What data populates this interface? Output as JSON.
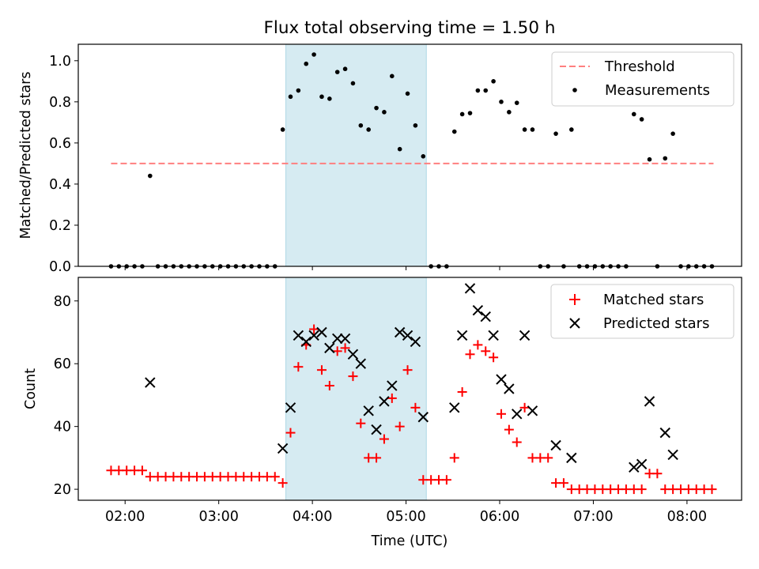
{
  "title": "Flux total observing time = 1.50 h",
  "colors": {
    "shade": "#add8e6",
    "threshold": "#ff7f7f",
    "measurement": "#000000",
    "matched": "#ff0000",
    "predicted": "#000000"
  },
  "chart_data": [
    {
      "type": "scatter",
      "ylabel": "Matched/Predicted stars",
      "xlim": [
        "01:30",
        "08:35"
      ],
      "ylim": [
        0,
        1.08
      ],
      "yticks": [
        "0.0",
        "0.2",
        "0.4",
        "0.6",
        "0.8",
        "1.0"
      ],
      "shaded_interval": [
        "03:43",
        "05:13"
      ],
      "legend_position": "upper right",
      "series": [
        {
          "name": "Threshold",
          "style": "dashed-line",
          "x": [
            "01:51",
            "08:17"
          ],
          "y": [
            0.5,
            0.5
          ]
        },
        {
          "name": "Measurements",
          "style": "dot",
          "points": [
            [
              "01:51",
              0
            ],
            [
              "01:56",
              0
            ],
            [
              "02:01",
              0
            ],
            [
              "02:06",
              0
            ],
            [
              "02:11",
              0
            ],
            [
              "02:16",
              0.44
            ],
            [
              "02:21",
              0
            ],
            [
              "02:26",
              0
            ],
            [
              "02:31",
              0
            ],
            [
              "02:36",
              0
            ],
            [
              "02:41",
              0
            ],
            [
              "02:46",
              0
            ],
            [
              "02:51",
              0
            ],
            [
              "02:56",
              0
            ],
            [
              "03:01",
              0
            ],
            [
              "03:06",
              0
            ],
            [
              "03:11",
              0
            ],
            [
              "03:16",
              0
            ],
            [
              "03:21",
              0
            ],
            [
              "03:26",
              0
            ],
            [
              "03:31",
              0
            ],
            [
              "03:36",
              0
            ],
            [
              "03:41",
              0.665
            ],
            [
              "03:46",
              0.825
            ],
            [
              "03:51",
              0.855
            ],
            [
              "03:56",
              0.985
            ],
            [
              "04:01",
              1.03
            ],
            [
              "04:06",
              0.825
            ],
            [
              "04:11",
              0.815
            ],
            [
              "04:16",
              0.945
            ],
            [
              "04:21",
              0.96
            ],
            [
              "04:26",
              0.89
            ],
            [
              "04:31",
              0.685
            ],
            [
              "04:36",
              0.665
            ],
            [
              "04:41",
              0.77
            ],
            [
              "04:46",
              0.75
            ],
            [
              "04:51",
              0.925
            ],
            [
              "04:56",
              0.57
            ],
            [
              "05:01",
              0.84
            ],
            [
              "05:06",
              0.685
            ],
            [
              "05:11",
              0.535
            ],
            [
              "05:16",
              0
            ],
            [
              "05:21",
              0
            ],
            [
              "05:26",
              0
            ],
            [
              "05:31",
              0.655
            ],
            [
              "05:36",
              0.74
            ],
            [
              "05:41",
              0.745
            ],
            [
              "05:46",
              0.855
            ],
            [
              "05:51",
              0.855
            ],
            [
              "05:56",
              0.9
            ],
            [
              "06:01",
              0.8
            ],
            [
              "06:06",
              0.75
            ],
            [
              "06:11",
              0.795
            ],
            [
              "06:16",
              0.665
            ],
            [
              "06:21",
              0.665
            ],
            [
              "06:26",
              0
            ],
            [
              "06:31",
              0
            ],
            [
              "06:36",
              0.645
            ],
            [
              "06:41",
              0
            ],
            [
              "06:46",
              0.665
            ],
            [
              "06:51",
              0
            ],
            [
              "06:56",
              0
            ],
            [
              "07:01",
              0
            ],
            [
              "07:06",
              0
            ],
            [
              "07:11",
              0
            ],
            [
              "07:16",
              0
            ],
            [
              "07:21",
              0
            ],
            [
              "07:26",
              0.74
            ],
            [
              "07:31",
              0.715
            ],
            [
              "07:36",
              0.52
            ],
            [
              "07:41",
              0
            ],
            [
              "07:46",
              0.525
            ],
            [
              "07:51",
              0.645
            ],
            [
              "07:56",
              0
            ],
            [
              "08:01",
              0
            ],
            [
              "08:06",
              0
            ],
            [
              "08:11",
              0
            ],
            [
              "08:16",
              0
            ]
          ]
        }
      ]
    },
    {
      "type": "scatter",
      "ylabel": "Count",
      "xlabel": "Time (UTC)",
      "xlim": [
        "01:30",
        "08:35"
      ],
      "ylim": [
        16.5,
        87.5
      ],
      "yticks": [
        "20",
        "40",
        "60",
        "80"
      ],
      "xticks": [
        "02:00",
        "03:00",
        "04:00",
        "05:00",
        "06:00",
        "07:00",
        "08:00"
      ],
      "shaded_interval": [
        "03:43",
        "05:13"
      ],
      "legend_position": "upper right",
      "series": [
        {
          "name": "Matched stars",
          "style": "plus",
          "points": [
            [
              "01:51",
              26
            ],
            [
              "01:56",
              26
            ],
            [
              "02:01",
              26
            ],
            [
              "02:06",
              26
            ],
            [
              "02:11",
              26
            ],
            [
              "02:16",
              24
            ],
            [
              "02:21",
              24
            ],
            [
              "02:26",
              24
            ],
            [
              "02:31",
              24
            ],
            [
              "02:36",
              24
            ],
            [
              "02:41",
              24
            ],
            [
              "02:46",
              24
            ],
            [
              "02:51",
              24
            ],
            [
              "02:56",
              24
            ],
            [
              "03:01",
              24
            ],
            [
              "03:06",
              24
            ],
            [
              "03:11",
              24
            ],
            [
              "03:16",
              24
            ],
            [
              "03:21",
              24
            ],
            [
              "03:26",
              24
            ],
            [
              "03:31",
              24
            ],
            [
              "03:36",
              24
            ],
            [
              "03:41",
              22
            ],
            [
              "03:46",
              38
            ],
            [
              "03:51",
              59
            ],
            [
              "03:56",
              66
            ],
            [
              "04:01",
              71
            ],
            [
              "04:06",
              58
            ],
            [
              "04:11",
              53
            ],
            [
              "04:16",
              64
            ],
            [
              "04:21",
              65
            ],
            [
              "04:26",
              56
            ],
            [
              "04:31",
              41
            ],
            [
              "04:36",
              30
            ],
            [
              "04:41",
              30
            ],
            [
              "04:46",
              36
            ],
            [
              "04:51",
              49
            ],
            [
              "04:56",
              40
            ],
            [
              "05:01",
              58
            ],
            [
              "05:06",
              46
            ],
            [
              "05:11",
              23
            ],
            [
              "05:16",
              23
            ],
            [
              "05:21",
              23
            ],
            [
              "05:26",
              23
            ],
            [
              "05:31",
              30
            ],
            [
              "05:36",
              51
            ],
            [
              "05:41",
              63
            ],
            [
              "05:46",
              66
            ],
            [
              "05:51",
              64
            ],
            [
              "05:56",
              62
            ],
            [
              "06:01",
              44
            ],
            [
              "06:06",
              39
            ],
            [
              "06:11",
              35
            ],
            [
              "06:16",
              46
            ],
            [
              "06:21",
              30
            ],
            [
              "06:26",
              30
            ],
            [
              "06:31",
              30
            ],
            [
              "06:36",
              22
            ],
            [
              "06:41",
              22
            ],
            [
              "06:46",
              20
            ],
            [
              "06:51",
              20
            ],
            [
              "06:56",
              20
            ],
            [
              "07:01",
              20
            ],
            [
              "07:06",
              20
            ],
            [
              "07:11",
              20
            ],
            [
              "07:16",
              20
            ],
            [
              "07:21",
              20
            ],
            [
              "07:26",
              20
            ],
            [
              "07:31",
              20
            ],
            [
              "07:36",
              25
            ],
            [
              "07:41",
              25
            ],
            [
              "07:46",
              20
            ],
            [
              "07:51",
              20
            ],
            [
              "07:56",
              20
            ],
            [
              "08:01",
              20
            ],
            [
              "08:06",
              20
            ],
            [
              "08:11",
              20
            ],
            [
              "08:16",
              20
            ]
          ]
        },
        {
          "name": "Predicted stars",
          "style": "cross",
          "points": [
            [
              "02:16",
              54
            ],
            [
              "03:41",
              33
            ],
            [
              "03:46",
              46
            ],
            [
              "03:51",
              69
            ],
            [
              "03:56",
              67
            ],
            [
              "04:01",
              69
            ],
            [
              "04:06",
              70
            ],
            [
              "04:11",
              65
            ],
            [
              "04:16",
              68
            ],
            [
              "04:21",
              68
            ],
            [
              "04:26",
              63
            ],
            [
              "04:31",
              60
            ],
            [
              "04:36",
              45
            ],
            [
              "04:41",
              39
            ],
            [
              "04:46",
              48
            ],
            [
              "04:51",
              53
            ],
            [
              "04:56",
              70
            ],
            [
              "05:01",
              69
            ],
            [
              "05:06",
              67
            ],
            [
              "05:11",
              43
            ],
            [
              "05:31",
              46
            ],
            [
              "05:36",
              69
            ],
            [
              "05:41",
              84
            ],
            [
              "05:46",
              77
            ],
            [
              "05:51",
              75
            ],
            [
              "05:56",
              69
            ],
            [
              "06:01",
              55
            ],
            [
              "06:06",
              52
            ],
            [
              "06:11",
              44
            ],
            [
              "06:16",
              69
            ],
            [
              "06:21",
              45
            ],
            [
              "06:36",
              34
            ],
            [
              "06:46",
              30
            ],
            [
              "07:26",
              27
            ],
            [
              "07:31",
              28
            ],
            [
              "07:36",
              48
            ],
            [
              "07:46",
              38
            ],
            [
              "07:51",
              31
            ]
          ]
        }
      ]
    }
  ]
}
